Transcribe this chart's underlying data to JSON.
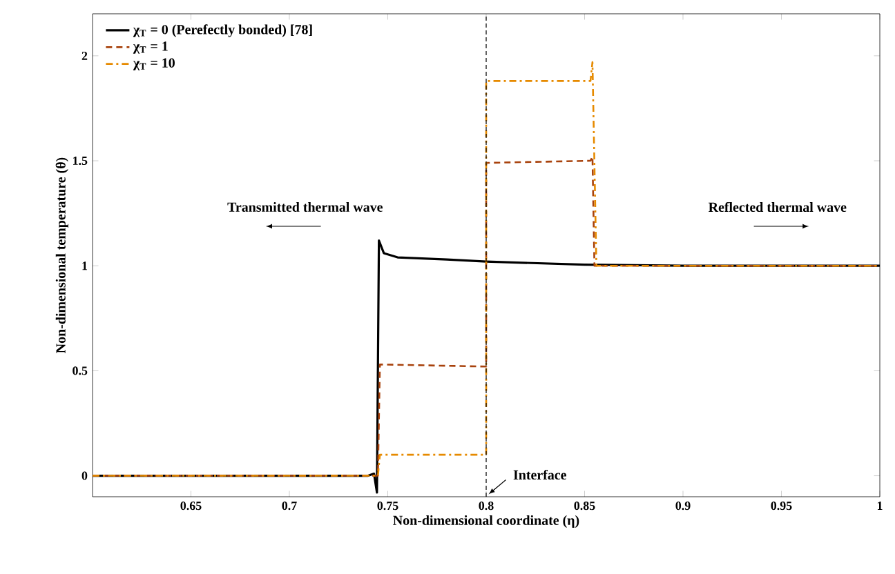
{
  "chart_data": {
    "type": "line",
    "xlabel": "Non-dimensional coordinate (η)",
    "ylabel": "Non-dimensional temperature (θ)",
    "xlim": [
      0.6,
      1
    ],
    "ylim": [
      -0.1,
      2.2
    ],
    "xticks": [
      0.65,
      0.7,
      0.75,
      0.8,
      0.85,
      0.9,
      0.95,
      1
    ],
    "yticks": [
      0,
      0.5,
      1,
      1.5,
      2
    ],
    "legend": "top left",
    "grid": false,
    "marker": "none",
    "series": [
      {
        "name": "χ$_{T}$ = 0 (Perefectly bonded) [78]",
        "color": "#000000",
        "line_style": "solid",
        "x": [
          0.6,
          0.74,
          0.743,
          0.7445,
          0.7455,
          0.748,
          0.755,
          0.78,
          0.8,
          0.85,
          0.9,
          1
        ],
        "values": [
          0,
          0,
          0.01,
          -0.08,
          1.12,
          1.06,
          1.04,
          1.03,
          1.02,
          1.005,
          1.0,
          1.0
        ]
      },
      {
        "name": "χ$_{T}$ = 1",
        "color": "#a8420c",
        "line_style": "dashed",
        "x": [
          0.6,
          0.745,
          0.746,
          0.8,
          0.8,
          0.853,
          0.854,
          0.855,
          1
        ],
        "values": [
          0,
          0,
          0.53,
          0.52,
          1.49,
          1.5,
          1.52,
          1.0,
          1.0
        ]
      },
      {
        "name": "χ$_{T}$ = 10",
        "color": "#e68a00",
        "line_style": "dashdot",
        "x": [
          0.6,
          0.745,
          0.746,
          0.8,
          0.8,
          0.853,
          0.854,
          0.856,
          1
        ],
        "values": [
          0,
          0,
          0.1,
          0.1,
          1.88,
          1.88,
          1.97,
          1.0,
          1.0
        ]
      }
    ],
    "ref_lines": [
      {
        "axis": "x",
        "value": 0.8,
        "label": "Interface",
        "color": "#000000",
        "line_style": "dashed"
      }
    ],
    "annotations": [
      "Transmitted thermal wave",
      "Reflected thermal wave"
    ]
  }
}
